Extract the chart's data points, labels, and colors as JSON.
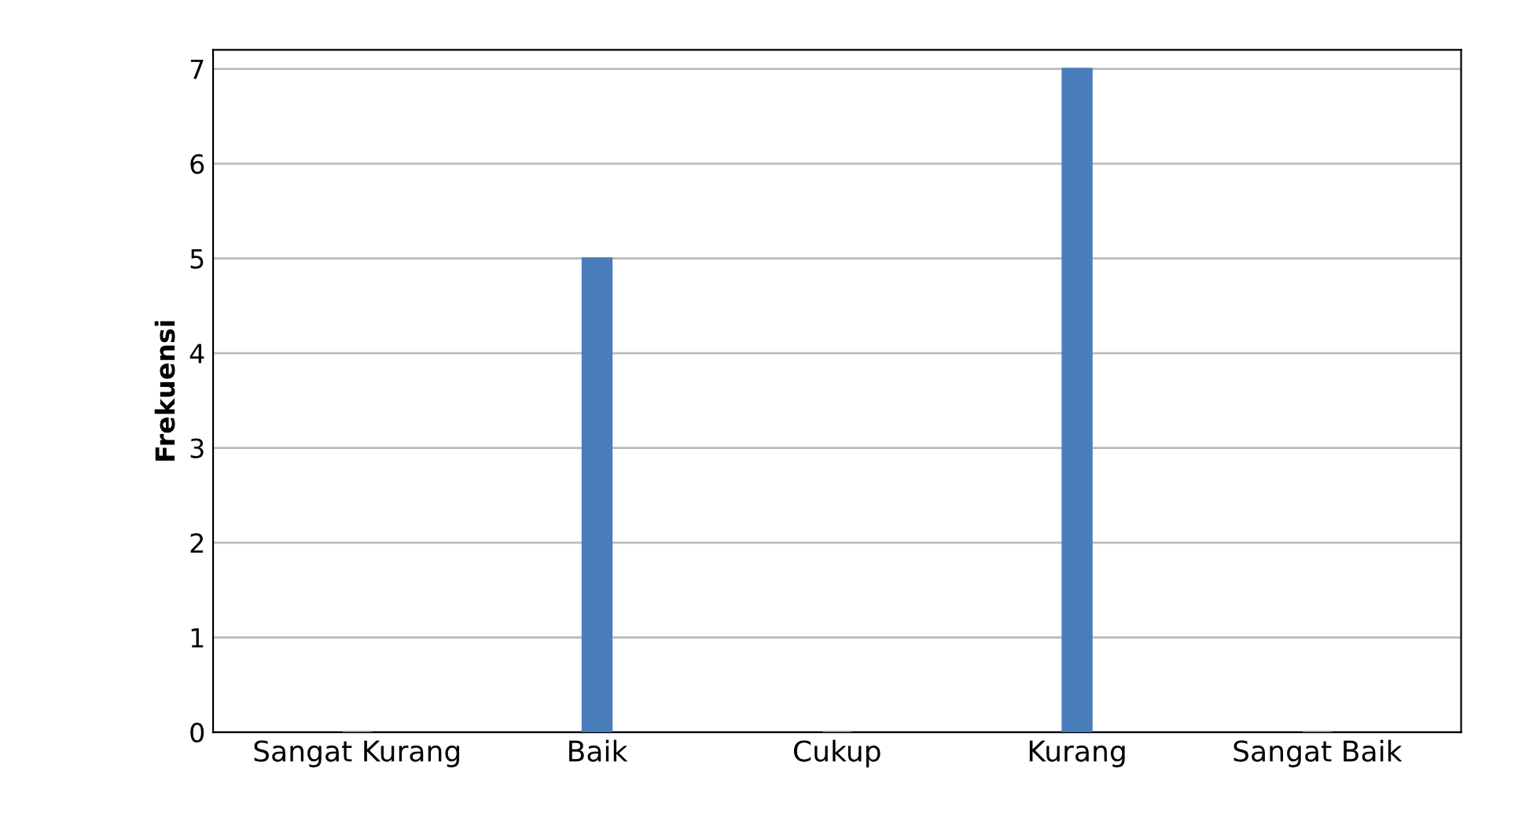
{
  "chart_data": {
    "type": "bar",
    "ylabel": "Frekuensi",
    "categories": [
      "Sangat Kurang",
      "Baik",
      "Cukup",
      "Kurang",
      "Sangat Baik"
    ],
    "values": [
      0,
      5,
      0,
      7,
      0
    ],
    "color": "#4a7ebb",
    "ylim": [
      0,
      7.2
    ],
    "yticks": [
      0,
      1,
      2,
      3,
      4,
      5,
      6,
      7
    ],
    "grid": "y"
  }
}
